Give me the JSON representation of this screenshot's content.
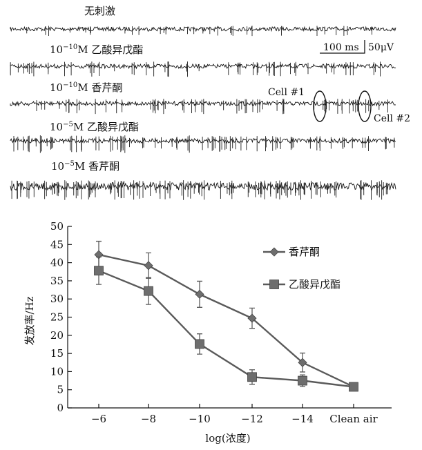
{
  "traces": {
    "labels": [
      "无刺激",
      "10<sup>−10</sup>M 乙酸异戊酯",
      "10<sup>−10</sup>M 香芹酮",
      "10<sup>−5</sup>M 乙酸异戊酯",
      "10<sup>−5</sup>M 香芹酮"
    ],
    "label_plain": [
      "无刺激",
      "10−10M 乙酸异戊酯",
      "10−10M 香芹酮",
      "10−5M 乙酸异戊酯",
      "10−5M 香芹酮"
    ],
    "scale_time": "100 ms",
    "scale_voltage": "50μV",
    "cell1": "Cell #1",
    "cell2": "Cell #2"
  },
  "chart_data": {
    "type": "line",
    "categories": [
      "−6",
      "−8",
      "−10",
      "−12",
      "−14",
      "Clean air"
    ],
    "xlabel": "log(浓度)",
    "ylabel": "发放率/Hz",
    "ylim": [
      0,
      50
    ],
    "yticks": [
      0,
      5,
      10,
      15,
      20,
      25,
      30,
      35,
      40,
      45,
      50
    ],
    "legend_position": "right",
    "series": [
      {
        "name": "香芹酮",
        "marker": "diamond",
        "values": [
          42.2,
          39.2,
          31.3,
          24.7,
          12.5,
          5.8
        ],
        "errors": [
          3.7,
          3.5,
          3.6,
          2.8,
          2.6,
          0.6
        ]
      },
      {
        "name": "乙酸异戊酯",
        "marker": "square",
        "values": [
          37.8,
          32.2,
          17.6,
          8.5,
          7.5,
          5.8
        ],
        "errors": [
          3.8,
          3.7,
          2.8,
          2.0,
          1.6,
          0.6
        ]
      }
    ],
    "colors": {
      "line": "#5a5a5a",
      "marker": "#6e6e6e",
      "trace": "#111111"
    }
  }
}
